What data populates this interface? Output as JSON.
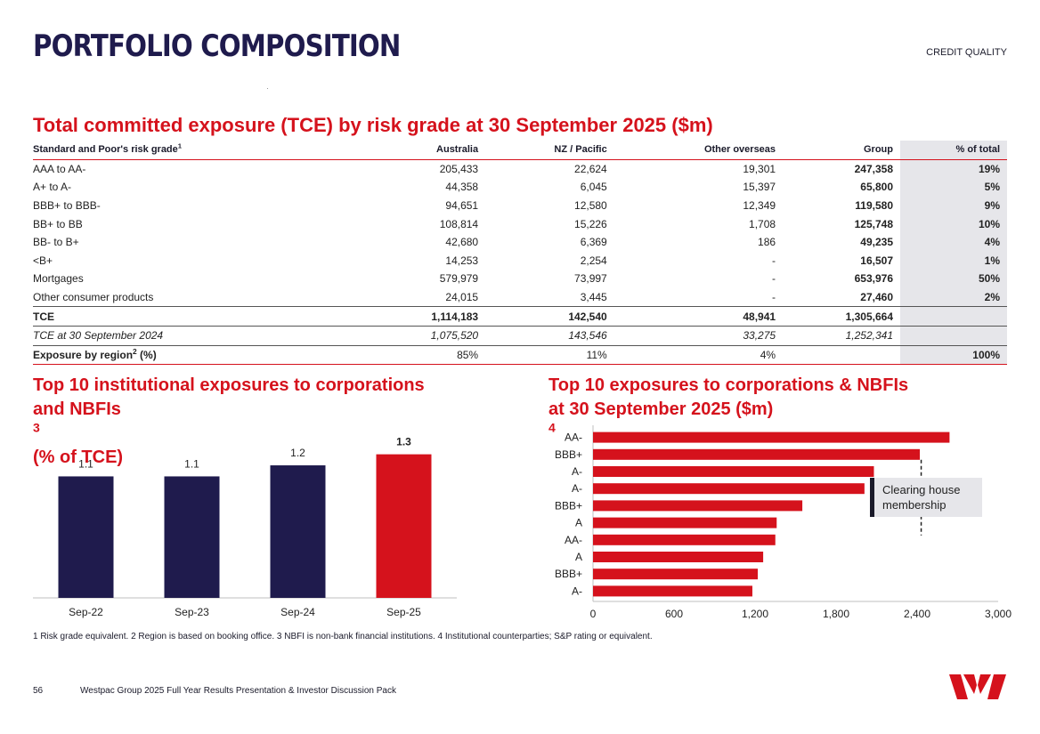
{
  "header": {
    "title": "PORTFOLIO COMPOSITION",
    "section": "CREDIT QUALITY"
  },
  "table": {
    "title": "Total committed exposure (TCE) by risk grade at 30 September 2025 ($m)",
    "headers": {
      "grade": "Standard and Poor's risk grade",
      "grade_sup": "1",
      "australia": "Australia",
      "nz": "NZ / Pacific",
      "overseas": "Other overseas",
      "group": "Group",
      "pct": "% of total"
    },
    "rows": [
      {
        "grade": "AAA to AA-",
        "australia": "205,433",
        "nz": "22,624",
        "overseas": "19,301",
        "group": "247,358",
        "pct": "19%"
      },
      {
        "grade": "A+ to A-",
        "australia": "44,358",
        "nz": "6,045",
        "overseas": "15,397",
        "group": "65,800",
        "pct": "5%"
      },
      {
        "grade": "BBB+ to BBB-",
        "australia": "94,651",
        "nz": "12,580",
        "overseas": "12,349",
        "group": "119,580",
        "pct": "9%"
      },
      {
        "grade": "BB+ to BB",
        "australia": "108,814",
        "nz": "15,226",
        "overseas": "1,708",
        "group": "125,748",
        "pct": "10%"
      },
      {
        "grade": "BB- to B+",
        "australia": "42,680",
        "nz": "6,369",
        "overseas": "186",
        "group": "49,235",
        "pct": "4%"
      },
      {
        "grade": "<B+",
        "australia": "14,253",
        "nz": "2,254",
        "overseas": "-",
        "group": "16,507",
        "pct": "1%"
      },
      {
        "grade": "Mortgages",
        "australia": "579,979",
        "nz": "73,997",
        "overseas": "-",
        "group": "653,976",
        "pct": "50%"
      },
      {
        "grade": "Other consumer products",
        "australia": "24,015",
        "nz": "3,445",
        "overseas": "-",
        "group": "27,460",
        "pct": "2%"
      }
    ],
    "total": {
      "grade": "TCE",
      "australia": "1,114,183",
      "nz": "142,540",
      "overseas": "48,941",
      "group": "1,305,664"
    },
    "prior": {
      "grade": "TCE at 30 September 2024",
      "australia": "1,075,520",
      "nz": "143,546",
      "overseas": "33,275",
      "group": "1,252,341"
    },
    "region": {
      "grade": "Exposure by region",
      "grade_sup": "2",
      "grade_suffix": " (%)",
      "australia": "85%",
      "nz": "11%",
      "overseas": "4%",
      "pct": "100%"
    }
  },
  "left_heading": {
    "line1": "Top 10 institutional exposures to corporations",
    "line2": "and NBFIs",
    "sup": "3",
    "suffix": " (% of TCE)"
  },
  "right_heading": {
    "line1": "Top 10 exposures to corporations & NBFIs",
    "line2": "at 30 September 2025 ($m)",
    "sup": "4"
  },
  "callout": {
    "line1": "Clearing house",
    "line2": "membership"
  },
  "footnote": "1 Risk grade equivalent. 2 Region is based on booking office. 3 NBFI is non-bank financial institutions. 4 Institutional counterparties; S&P rating or equivalent.",
  "footer": {
    "page": "56",
    "text": "Westpac Group 2025 Full Year Results Presentation & Investor Discussion Pack"
  },
  "colors": {
    "navy": "#1f1b4d",
    "red": "#d5121c"
  },
  "chart_data": [
    {
      "type": "bar",
      "title": "Top 10 institutional exposures to corporations and NBFIs (% of TCE)",
      "categories": [
        "Sep-22",
        "Sep-23",
        "Sep-24",
        "Sep-25"
      ],
      "values": [
        1.1,
        1.1,
        1.2,
        1.3
      ],
      "labels": [
        "1.1",
        "1.1",
        "1.2",
        "1.3"
      ],
      "highlight_index": 3,
      "ylim": [
        0,
        1.45
      ]
    },
    {
      "type": "bar",
      "orientation": "horizontal",
      "title": "Top 10 exposures to corporations & NBFIs at 30 September 2025 ($m)",
      "categories": [
        "AA-",
        "BBB+",
        "A-",
        "A-",
        "BBB+",
        "A",
        "AA-",
        "A",
        "BBB+",
        "A-"
      ],
      "values": [
        2640,
        2420,
        2080,
        2010,
        1550,
        1360,
        1350,
        1260,
        1220,
        1180
      ],
      "xlim": [
        0,
        3000
      ],
      "ticks": [
        "0",
        "600",
        "1,200",
        "1,800",
        "2,400",
        "3,000"
      ],
      "tick_values": [
        0,
        600,
        1200,
        1800,
        2400,
        3000
      ],
      "annotation": "Clearing house membership",
      "annotation_bar_index": 1
    }
  ]
}
